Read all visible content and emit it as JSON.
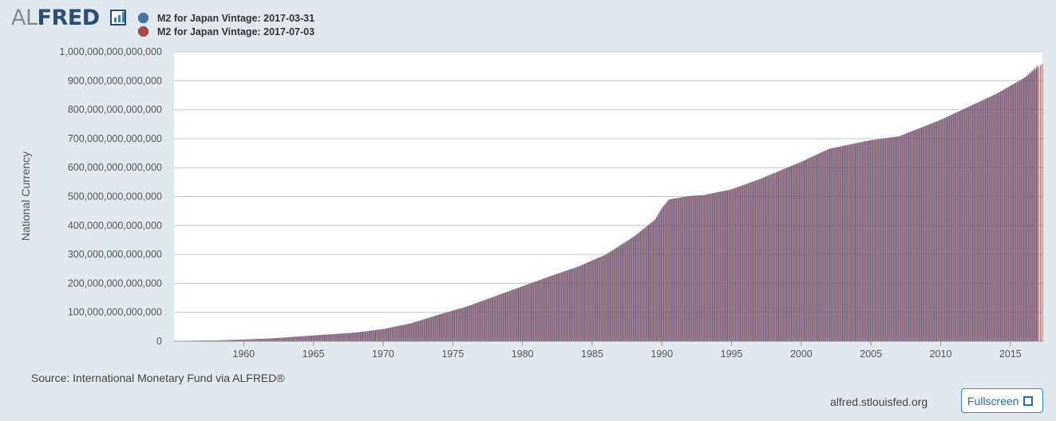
{
  "header": {
    "logo_prefix": "AL",
    "logo_suffix": "FRED"
  },
  "colors": {
    "series_1": "#4572a7",
    "series_2": "#aa4643",
    "plot_bg": "#ffffff",
    "page_bg": "#e1e9f0",
    "grid": "#c8c8c8"
  },
  "chart_data": {
    "type": "bar",
    "ylabel": "National Currency",
    "ylim": [
      0,
      1000000000000000
    ],
    "y_ticks": [
      0,
      100000000000000,
      200000000000000,
      300000000000000,
      400000000000000,
      500000000000000,
      600000000000000,
      700000000000000,
      800000000000000,
      900000000000000,
      1000000000000000
    ],
    "y_tick_labels": [
      "0",
      "100,000,000,000,000",
      "200,000,000,000,000",
      "300,000,000,000,000",
      "400,000,000,000,000",
      "500,000,000,000,000",
      "600,000,000,000,000",
      "700,000,000,000,000",
      "800,000,000,000,000",
      "900,000,000,000,000",
      "1,000,000,000,000,000"
    ],
    "x_range": [
      1955.0,
      2017.3
    ],
    "x_ticks": [
      1960,
      1965,
      1970,
      1975,
      1980,
      1985,
      1990,
      1995,
      2000,
      2005,
      2010,
      2015
    ],
    "x_tick_labels": [
      "1960",
      "1965",
      "1970",
      "1975",
      "1980",
      "1985",
      "1990",
      "1995",
      "2000",
      "2005",
      "2010",
      "2015"
    ],
    "grid": true,
    "legend_position": "top-left",
    "series": [
      {
        "name": "M2 for Japan Vintage: 2017-03-31",
        "color": "#4572a7",
        "x": [
          1955,
          1958,
          1960,
          1962,
          1965,
          1968,
          1970,
          1972,
          1974,
          1976,
          1978,
          1980,
          1982,
          1984,
          1986,
          1988,
          1989.5,
          1990,
          1990.5,
          1992,
          1993,
          1995,
          1997,
          2000,
          2002,
          2005,
          2007,
          2010,
          2012,
          2014,
          2016,
          2017
        ],
        "values": [
          1000000000000,
          3000000000000,
          6000000000000,
          10000000000000,
          20000000000000,
          30000000000000,
          42000000000000,
          62000000000000,
          92000000000000,
          120000000000000,
          155000000000000,
          190000000000000,
          225000000000000,
          258000000000000,
          300000000000000,
          362000000000000,
          420000000000000,
          460000000000000,
          490000000000000,
          502000000000000,
          505000000000000,
          525000000000000,
          560000000000000,
          620000000000000,
          665000000000000,
          695000000000000,
          708000000000000,
          765000000000000,
          810000000000000,
          855000000000000,
          910000000000000,
          955000000000000
        ]
      },
      {
        "name": "M2 for Japan Vintage: 2017-07-03",
        "color": "#aa4643",
        "x": [
          1955,
          1958,
          1960,
          1962,
          1965,
          1968,
          1970,
          1972,
          1974,
          1976,
          1978,
          1980,
          1982,
          1984,
          1986,
          1988,
          1989.5,
          1990,
          1990.5,
          1992,
          1993,
          1995,
          1997,
          2000,
          2002,
          2005,
          2007,
          2010,
          2012,
          2014,
          2016,
          2017.3
        ],
        "values": [
          1000000000000,
          3000000000000,
          6000000000000,
          10000000000000,
          20000000000000,
          30000000000000,
          42000000000000,
          62000000000000,
          92000000000000,
          120000000000000,
          155000000000000,
          190000000000000,
          225000000000000,
          258000000000000,
          300000000000000,
          362000000000000,
          420000000000000,
          460000000000000,
          490000000000000,
          502000000000000,
          505000000000000,
          525000000000000,
          560000000000000,
          620000000000000,
          665000000000000,
          695000000000000,
          708000000000000,
          765000000000000,
          810000000000000,
          855000000000000,
          910000000000000,
          960000000000000
        ]
      }
    ]
  },
  "footer": {
    "source": "Source: International Monetary Fund via ALFRED®",
    "site": "alfred.stlouisfed.org",
    "fullscreen_label": "Fullscreen"
  }
}
